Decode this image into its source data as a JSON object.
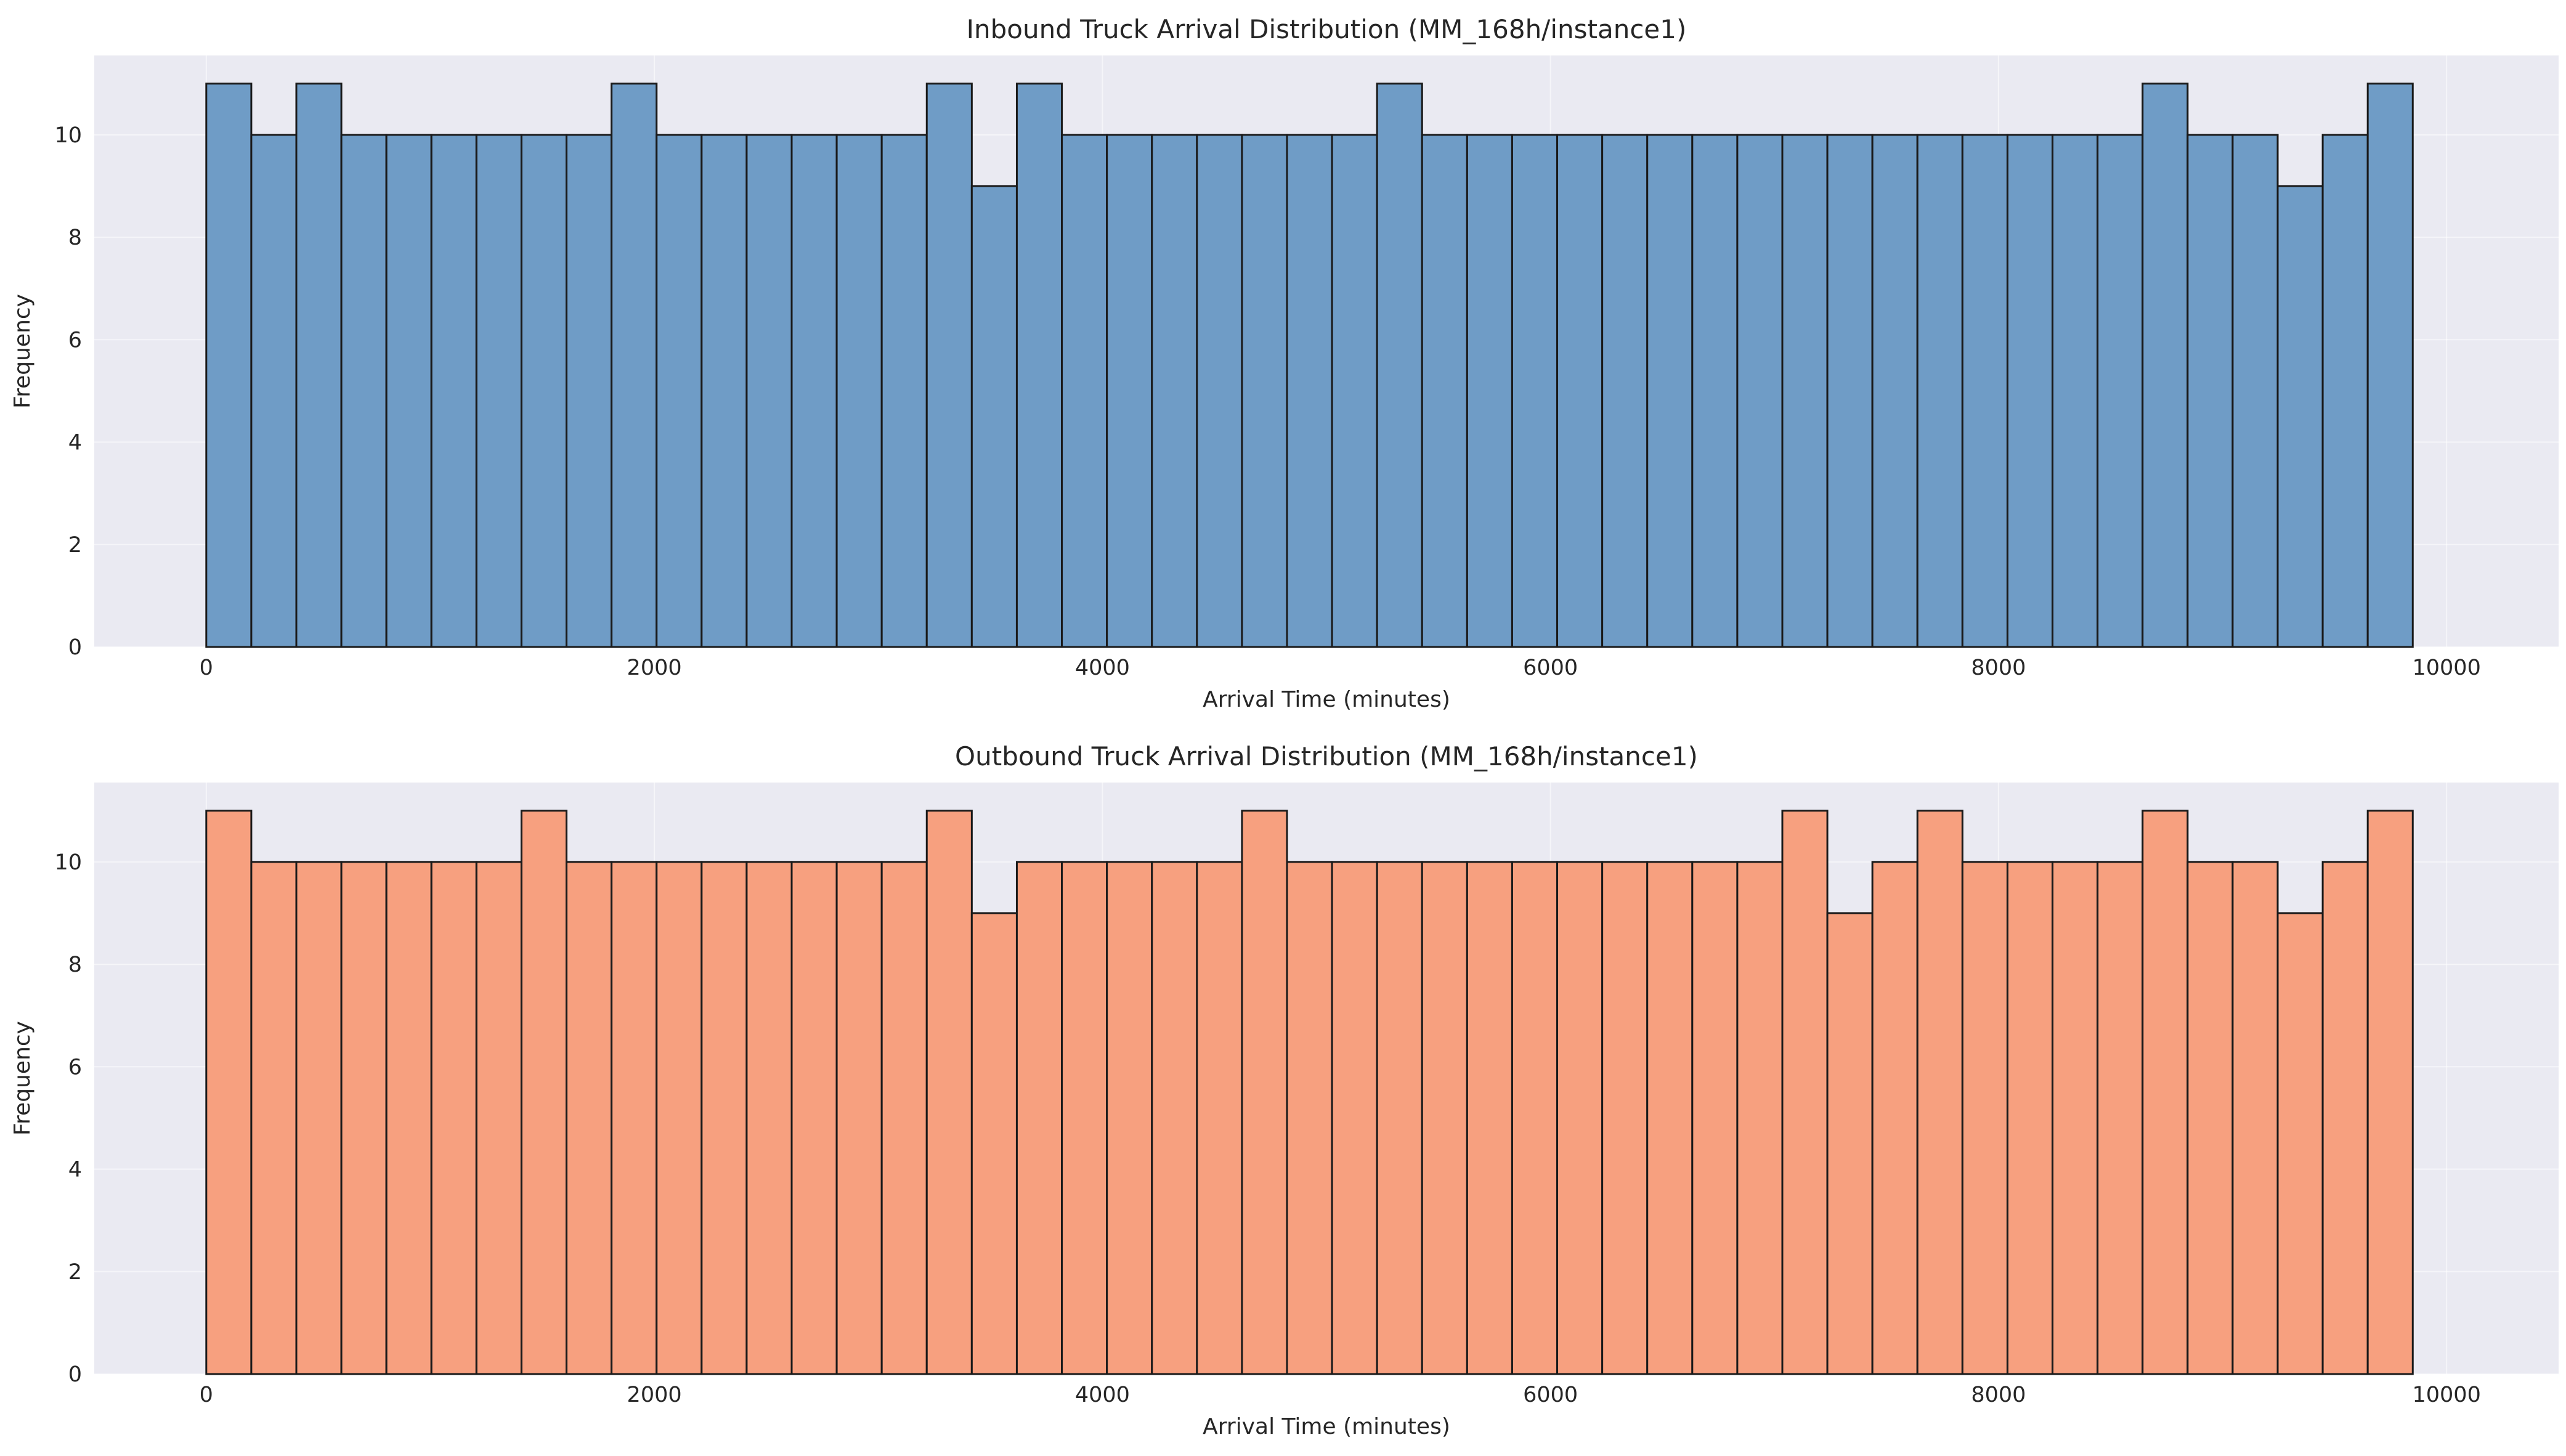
{
  "chart_data": [
    {
      "type": "bar",
      "title": "Inbound Truck Arrival Distribution (MM_168h/instance1)",
      "xlabel": "Arrival Time (minutes)",
      "ylabel": "Frequency",
      "xlim": [
        -500,
        10500
      ],
      "ylim": [
        0,
        11.55
      ],
      "xticks": [
        0,
        2000,
        4000,
        6000,
        8000,
        10000
      ],
      "yticks": [
        0,
        2,
        4,
        6,
        8,
        10
      ],
      "bin_start": 0,
      "bin_width": 201,
      "grid": true,
      "color": "#6f9cc6",
      "values": [
        11,
        10,
        11,
        10,
        10,
        10,
        10,
        10,
        10,
        11,
        10,
        10,
        10,
        10,
        10,
        10,
        11,
        9,
        11,
        10,
        10,
        10,
        10,
        10,
        10,
        10,
        11,
        10,
        10,
        10,
        10,
        10,
        10,
        10,
        10,
        10,
        10,
        10,
        10,
        10,
        10,
        10,
        10,
        11,
        10,
        10,
        9,
        10,
        11
      ]
    },
    {
      "type": "bar",
      "title": "Outbound Truck Arrival Distribution (MM_168h/instance1)",
      "xlabel": "Arrival Time (minutes)",
      "ylabel": "Frequency",
      "xlim": [
        -500,
        10500
      ],
      "ylim": [
        0,
        11.55
      ],
      "xticks": [
        0,
        2000,
        4000,
        6000,
        8000,
        10000
      ],
      "yticks": [
        0,
        2,
        4,
        6,
        8,
        10
      ],
      "bin_start": 0,
      "bin_width": 201,
      "grid": true,
      "color": "#f7a07f",
      "values": [
        11,
        10,
        10,
        10,
        10,
        10,
        10,
        11,
        10,
        10,
        10,
        10,
        10,
        10,
        10,
        10,
        11,
        9,
        10,
        10,
        10,
        10,
        10,
        11,
        10,
        10,
        10,
        10,
        10,
        10,
        10,
        10,
        10,
        10,
        10,
        11,
        9,
        10,
        11,
        10,
        10,
        10,
        10,
        11,
        10,
        10,
        9,
        10,
        11
      ]
    }
  ]
}
